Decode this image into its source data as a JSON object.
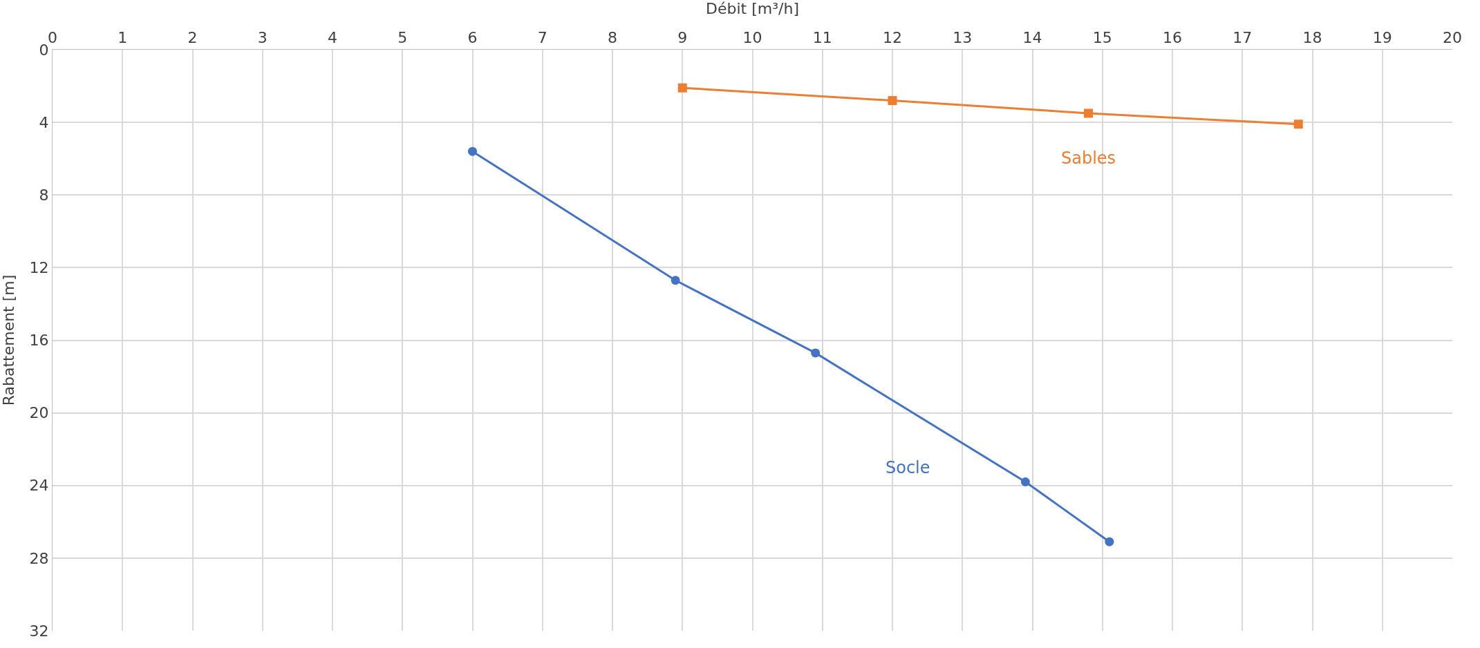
{
  "chart_data": {
    "type": "line",
    "xlabel": "Débit [m³/h]",
    "ylabel": "Rabattement [m]",
    "xlim": [
      0,
      20
    ],
    "xticks": [
      0,
      1,
      2,
      3,
      4,
      5,
      6,
      7,
      8,
      9,
      10,
      11,
      12,
      13,
      14,
      15,
      16,
      17,
      18,
      19,
      20
    ],
    "ylim": [
      32,
      0
    ],
    "yticks": [
      0,
      4,
      8,
      12,
      16,
      20,
      24,
      28,
      32
    ],
    "grid": true,
    "legend": false,
    "series": [
      {
        "name": "Socle",
        "color": "#4472c4",
        "marker": "circle",
        "x": [
          6,
          8.9,
          10.9,
          13.9,
          15.1
        ],
        "values": [
          5.6,
          12.7,
          16.7,
          23.8,
          27.1
        ]
      },
      {
        "name": "Sables",
        "color": "#ed7d31",
        "marker": "square",
        "x": [
          9,
          12,
          14.8,
          17.8
        ],
        "values": [
          2.1,
          2.8,
          3.5,
          4.1
        ]
      }
    ]
  }
}
